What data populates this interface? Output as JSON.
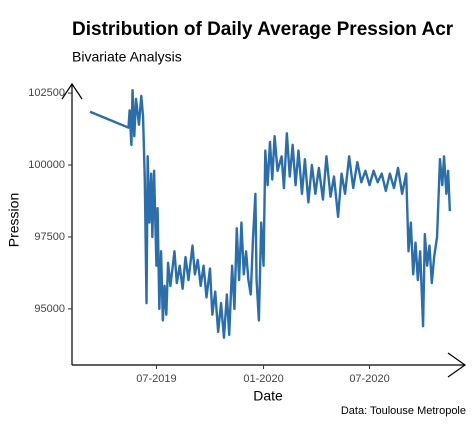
{
  "chart_data": {
    "type": "line",
    "title": "Distribution of Daily Average Pression Acr",
    "subtitle": "Bivariate Analysis",
    "x_label": "Date",
    "y_label": "Pression",
    "caption": "Data: Toulouse Metropole",
    "xlim": [
      "2019-02-06",
      "2020-12-12"
    ],
    "xticks": [
      {
        "value": "2019-07-01",
        "label": "07-2019"
      },
      {
        "value": "2020-01-01",
        "label": "01-2020"
      },
      {
        "value": "2020-07-01",
        "label": "07-2020"
      }
    ],
    "ylim": [
      93050,
      102850
    ],
    "yticks": [
      {
        "value": 95000,
        "label": "95000"
      },
      {
        "value": 97500,
        "label": "97500"
      },
      {
        "value": 100000,
        "label": "100000"
      },
      {
        "value": 102500,
        "label": "102500"
      }
    ],
    "series": [
      {
        "name": "Pression",
        "color": "#2b6ea9",
        "x": [
          "2019-03-09",
          "2019-05-14",
          "2019-05-16",
          "2019-05-19",
          "2019-05-21",
          "2019-05-24",
          "2019-05-27",
          "2019-06-01",
          "2019-06-05",
          "2019-06-08",
          "2019-06-11",
          "2019-06-14",
          "2019-06-16",
          "2019-06-19",
          "2019-06-22",
          "2019-06-24",
          "2019-06-27",
          "2019-07-01",
          "2019-07-03",
          "2019-07-06",
          "2019-07-09",
          "2019-07-12",
          "2019-07-15",
          "2019-07-18",
          "2019-07-21",
          "2019-07-25",
          "2019-08-01",
          "2019-08-05",
          "2019-08-10",
          "2019-08-15",
          "2019-08-20",
          "2019-08-25",
          "2019-09-01",
          "2019-09-05",
          "2019-09-10",
          "2019-09-15",
          "2019-09-20",
          "2019-09-25",
          "2019-10-01",
          "2019-10-05",
          "2019-10-10",
          "2019-10-15",
          "2019-10-20",
          "2019-10-25",
          "2019-10-30",
          "2019-11-03",
          "2019-11-08",
          "2019-11-12",
          "2019-11-16",
          "2019-11-20",
          "2019-11-24",
          "2019-11-28",
          "2019-12-02",
          "2019-12-06",
          "2019-12-10",
          "2019-12-14",
          "2019-12-18",
          "2019-12-20",
          "2019-12-24",
          "2019-12-28",
          "2020-01-01",
          "2020-01-04",
          "2020-01-08",
          "2020-01-12",
          "2020-01-16",
          "2020-01-20",
          "2020-01-25",
          "2020-02-01",
          "2020-02-05",
          "2020-02-10",
          "2020-02-15",
          "2020-02-20",
          "2020-02-25",
          "2020-03-01",
          "2020-03-07",
          "2020-03-12",
          "2020-03-18",
          "2020-03-24",
          "2020-03-30",
          "2020-04-05",
          "2020-04-12",
          "2020-04-18",
          "2020-04-25",
          "2020-05-01",
          "2020-05-08",
          "2020-05-14",
          "2020-05-20",
          "2020-05-27",
          "2020-06-03",
          "2020-06-10",
          "2020-06-17",
          "2020-06-24",
          "2020-07-01",
          "2020-07-08",
          "2020-07-15",
          "2020-07-22",
          "2020-07-29",
          "2020-08-05",
          "2020-08-12",
          "2020-08-19",
          "2020-08-26",
          "2020-09-02",
          "2020-09-06",
          "2020-09-10",
          "2020-09-14",
          "2020-09-18",
          "2020-09-22",
          "2020-09-26",
          "2020-10-01",
          "2020-10-04",
          "2020-10-08",
          "2020-10-12",
          "2020-10-16",
          "2020-10-20",
          "2020-10-25",
          "2020-10-30",
          "2020-11-03",
          "2020-11-06",
          "2020-11-10",
          "2020-11-13",
          "2020-11-16"
        ],
        "values": [
          101850,
          101300,
          101900,
          100700,
          102600,
          101000,
          102300,
          101400,
          102400,
          101700,
          99500,
          95200,
          100300,
          98000,
          99700,
          97500,
          99800,
          96500,
          98500,
          95000,
          97000,
          94600,
          95800,
          94800,
          96600,
          95800,
          97000,
          95900,
          96500,
          95700,
          96800,
          96000,
          97200,
          96200,
          96700,
          95800,
          96500,
          95400,
          96400,
          94800,
          95600,
          94200,
          95200,
          94000,
          95500,
          94100,
          96500,
          95000,
          97800,
          96000,
          98000,
          96200,
          97000,
          96000,
          95500,
          97500,
          99000,
          96000,
          94600,
          98000,
          96500,
          100500,
          99300,
          100800,
          99500,
          101000,
          99800,
          100300,
          99200,
          101100,
          99600,
          100700,
          99300,
          100500,
          99000,
          100200,
          98700,
          100000,
          99000,
          99900,
          98800,
          100300,
          98900,
          99600,
          98200,
          99700,
          99000,
          100300,
          99200,
          100100,
          99400,
          99800,
          99300,
          99800,
          99400,
          99700,
          99100,
          99700,
          99200,
          99900,
          99000,
          99700,
          97000,
          98000,
          96200,
          97300,
          96000,
          97000,
          94400,
          97600,
          96500,
          97200,
          95900,
          96800,
          97500,
          100200,
          99300,
          100300,
          99000,
          99800,
          98400
        ]
      }
    ]
  }
}
